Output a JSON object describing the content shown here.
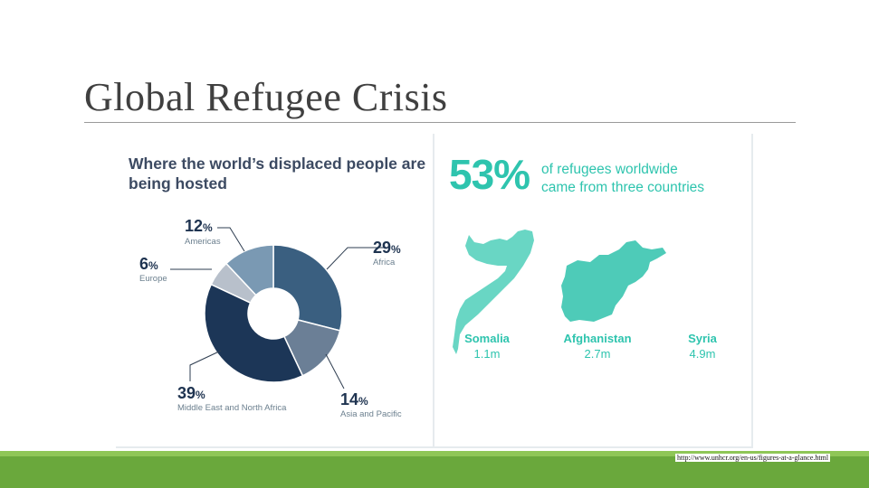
{
  "slide": {
    "title": "Global Refugee Crisis",
    "source_link": "http://www.unhcr.org/en-us/figures-at-a-glance.html"
  },
  "chart_data": [
    {
      "type": "pie",
      "title": "Where the world’s displaced people are being hosted",
      "unit": "%",
      "categories": [
        "Africa",
        "Asia and Pacific",
        "Middle East and North Africa",
        "Europe",
        "Americas"
      ],
      "values": [
        29,
        14,
        39,
        6,
        12
      ],
      "colors": [
        "#3a5f80",
        "#6b7f96",
        "#1c3657",
        "#b8c0cb",
        "#7a99b3"
      ],
      "donut": true
    },
    {
      "type": "table",
      "headline_value": "53%",
      "headline_text_line1": "of refugees worldwide",
      "headline_text_line2": "came from three countries",
      "categories": [
        "Somalia",
        "Afghanistan",
        "Syria"
      ],
      "values": [
        "1.1m",
        "2.7m",
        "4.9m"
      ],
      "icons": [
        "somalia-map-icon",
        "afghanistan-map-icon",
        "syria-map-icon"
      ],
      "colors": [
        "#69d6c4",
        "#4ecbb8",
        "#2db59d"
      ]
    }
  ]
}
